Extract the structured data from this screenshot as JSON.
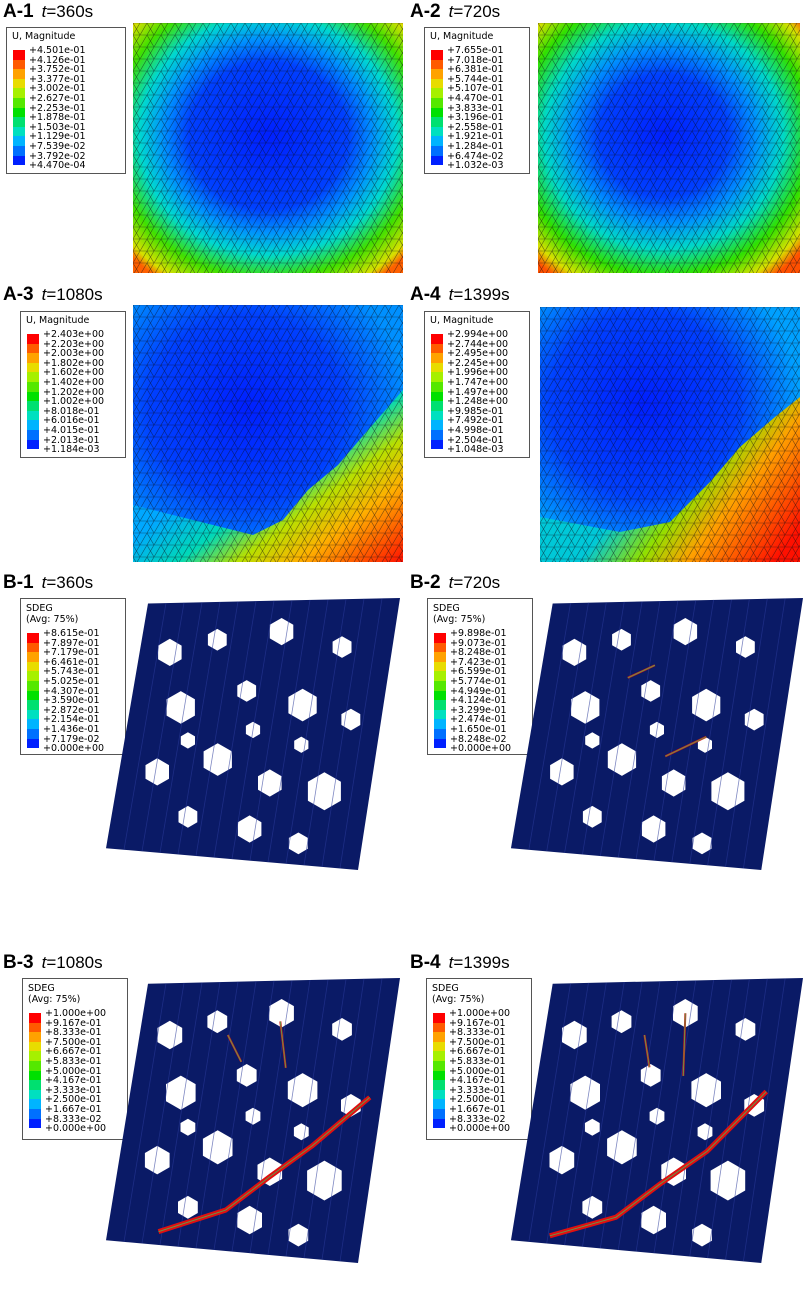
{
  "panels": [
    {
      "id": "A-1",
      "t_label": "t",
      "t_value": "=360s",
      "legend_title": [
        "U, Magnitude"
      ],
      "values": [
        "+4.501e-01",
        "+4.126e-01",
        "+3.752e-01",
        "+3.377e-01",
        "+3.002e-01",
        "+2.627e-01",
        "+2.253e-01",
        "+1.878e-01",
        "+1.503e-01",
        "+1.129e-01",
        "+7.539e-02",
        "+3.792e-02",
        "+4.470e-04"
      ]
    },
    {
      "id": "A-2",
      "t_label": "t",
      "t_value": "=720s",
      "legend_title": [
        "U, Magnitude"
      ],
      "values": [
        "+7.655e-01",
        "+7.018e-01",
        "+6.381e-01",
        "+5.744e-01",
        "+5.107e-01",
        "+4.470e-01",
        "+3.833e-01",
        "+3.196e-01",
        "+2.558e-01",
        "+1.921e-01",
        "+1.284e-01",
        "+6.474e-02",
        "+1.032e-03"
      ]
    },
    {
      "id": "A-3",
      "t_label": "t",
      "t_value": "=1080s",
      "legend_title": [
        "U, Magnitude"
      ],
      "values": [
        "+2.403e+00",
        "+2.203e+00",
        "+2.003e+00",
        "+1.802e+00",
        "+1.602e+00",
        "+1.402e+00",
        "+1.202e+00",
        "+1.002e+00",
        "+8.018e-01",
        "+6.016e-01",
        "+4.015e-01",
        "+2.013e-01",
        "+1.184e-03"
      ]
    },
    {
      "id": "A-4",
      "t_label": "t",
      "t_value": "=1399s",
      "legend_title": [
        "U, Magnitude"
      ],
      "values": [
        "+2.994e+00",
        "+2.744e+00",
        "+2.495e+00",
        "+2.245e+00",
        "+1.996e+00",
        "+1.747e+00",
        "+1.497e+00",
        "+1.248e+00",
        "+9.985e-01",
        "+7.492e-01",
        "+4.998e-01",
        "+2.504e-01",
        "+1.048e-03"
      ]
    },
    {
      "id": "B-1",
      "t_label": "t",
      "t_value": "=360s",
      "legend_title": [
        "SDEG",
        "(Avg: 75%)"
      ],
      "values": [
        "+8.615e-01",
        "+7.897e-01",
        "+7.179e-01",
        "+6.461e-01",
        "+5.743e-01",
        "+5.025e-01",
        "+4.307e-01",
        "+3.590e-01",
        "+2.872e-01",
        "+2.154e-01",
        "+1.436e-01",
        "+7.179e-02",
        "+0.000e+00"
      ]
    },
    {
      "id": "B-2",
      "t_label": "t",
      "t_value": "=720s",
      "legend_title": [
        "SDEG",
        "(Avg: 75%)"
      ],
      "values": [
        "+9.898e-01",
        "+9.073e-01",
        "+8.248e-01",
        "+7.423e-01",
        "+6.599e-01",
        "+5.774e-01",
        "+4.949e-01",
        "+4.124e-01",
        "+3.299e-01",
        "+2.474e-01",
        "+1.650e-01",
        "+8.248e-02",
        "+0.000e+00"
      ]
    },
    {
      "id": "B-3",
      "t_label": "t",
      "t_value": "=1080s",
      "legend_title": [
        "SDEG",
        "(Avg: 75%)"
      ],
      "values": [
        "+1.000e+00",
        "+9.167e-01",
        "+8.333e-01",
        "+7.500e-01",
        "+6.667e-01",
        "+5.833e-01",
        "+5.000e-01",
        "+4.167e-01",
        "+3.333e-01",
        "+2.500e-01",
        "+1.667e-01",
        "+8.333e-02",
        "+0.000e+00"
      ]
    },
    {
      "id": "B-4",
      "t_label": "t",
      "t_value": "=1399s",
      "legend_title": [
        "SDEG",
        "(Avg: 75%)"
      ],
      "values": [
        "+1.000e+00",
        "+9.167e-01",
        "+8.333e-01",
        "+7.500e-01",
        "+6.667e-01",
        "+5.833e-01",
        "+5.000e-01",
        "+4.167e-01",
        "+3.333e-01",
        "+2.500e-01",
        "+1.667e-01",
        "+8.333e-02",
        "+0.000e+00"
      ]
    }
  ],
  "colormap": [
    "#ff0000",
    "#ff5a00",
    "#ffa200",
    "#e8dc00",
    "#a6f000",
    "#55e800",
    "#00e000",
    "#00e070",
    "#00e0c0",
    "#00b4ff",
    "#0070ff",
    "#0020ff"
  ],
  "theme": {
    "mesh_line": "#0a0a14",
    "lattice": "#0a1a66",
    "crack": "#e01010"
  }
}
